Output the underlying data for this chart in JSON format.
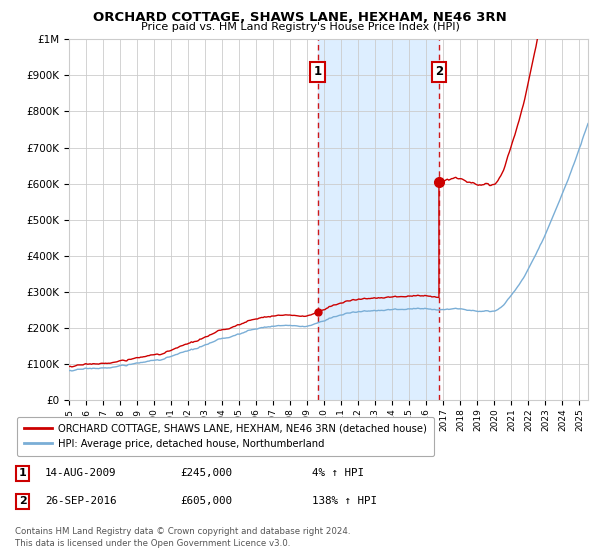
{
  "title": "ORCHARD COTTAGE, SHAWS LANE, HEXHAM, NE46 3RN",
  "subtitle": "Price paid vs. HM Land Registry's House Price Index (HPI)",
  "legend_line1": "ORCHARD COTTAGE, SHAWS LANE, HEXHAM, NE46 3RN (detached house)",
  "legend_line2": "HPI: Average price, detached house, Northumberland",
  "sale1_label": "1",
  "sale1_date": "14-AUG-2009",
  "sale1_price": 245000,
  "sale1_year": 2009.62,
  "sale1_pct": "4%",
  "sale2_label": "2",
  "sale2_date": "26-SEP-2016",
  "sale2_price": 605000,
  "sale2_year": 2016.74,
  "sale2_pct": "138%",
  "footer1": "Contains HM Land Registry data © Crown copyright and database right 2024.",
  "footer2": "This data is licensed under the Open Government Licence v3.0.",
  "ylim": [
    0,
    1000000
  ],
  "xmin": 1995.0,
  "xmax": 2025.5,
  "red_color": "#cc0000",
  "blue_color": "#7aaed6",
  "shade_color": "#ddeeff",
  "grid_color": "#cccccc",
  "bg_color": "#ffffff"
}
